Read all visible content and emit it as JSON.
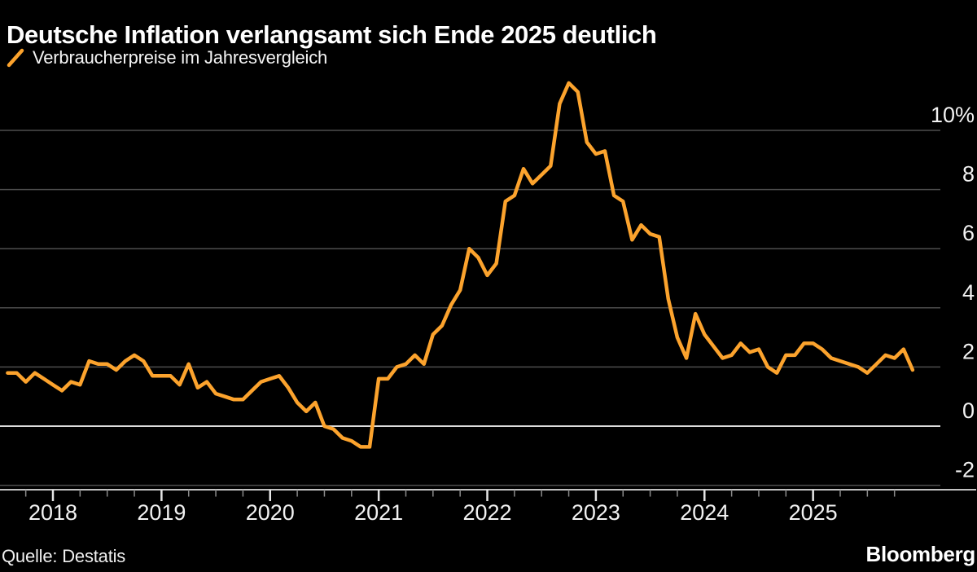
{
  "title": "Deutsche Inflation verlangsamt sich Ende 2025 deutlich",
  "legend": {
    "label": "Verbraucherpreise im Jahresvergleich"
  },
  "source": "Quelle: Destatis",
  "brand": "Bloomberg",
  "colors": {
    "background": "#000000",
    "line": "#FCA32D",
    "grid": "#4d4d4d",
    "zero_line": "#dcdcdc",
    "axis_line": "#c2c2c2",
    "year_tick": "#e5e5e5",
    "quarter_tick": "#8a8a8a",
    "text": "#f2f2f2"
  },
  "chart_data": {
    "type": "line",
    "title": "Deutsche Inflation verlangsamt sich Ende 2025 deutlich",
    "series_name": "Verbraucherpreise im Jahresvergleich",
    "unit": "%",
    "frequency": "monthly",
    "start_month": "2017-08",
    "end_month": "2025-12",
    "values": [
      1.8,
      1.8,
      1.5,
      1.8,
      1.6,
      1.4,
      1.2,
      1.5,
      1.4,
      2.2,
      2.1,
      2.1,
      1.9,
      2.2,
      2.4,
      2.2,
      1.7,
      1.7,
      1.7,
      1.4,
      2.1,
      1.3,
      1.5,
      1.1,
      1.0,
      0.9,
      0.9,
      1.2,
      1.5,
      1.6,
      1.7,
      1.3,
      0.8,
      0.5,
      0.8,
      0.0,
      -0.1,
      -0.4,
      -0.5,
      -0.7,
      -0.7,
      1.6,
      1.6,
      2.0,
      2.1,
      2.4,
      2.1,
      3.1,
      3.4,
      4.1,
      4.6,
      6.0,
      5.7,
      5.1,
      5.5,
      7.6,
      7.8,
      8.7,
      8.2,
      8.5,
      8.8,
      10.9,
      11.6,
      11.3,
      9.6,
      9.2,
      9.3,
      7.8,
      7.6,
      6.3,
      6.8,
      6.5,
      6.4,
      4.3,
      3.0,
      2.3,
      3.8,
      3.1,
      2.7,
      2.3,
      2.4,
      2.8,
      2.5,
      2.6,
      2.0,
      1.8,
      2.4,
      2.4,
      2.8,
      2.8,
      2.6,
      2.3,
      2.2,
      2.1,
      2.0,
      1.8,
      2.1,
      2.4,
      2.3,
      2.6,
      1.9
    ],
    "x_ticks": [
      "2018",
      "2019",
      "2020",
      "2021",
      "2022",
      "2023",
      "2024",
      "2025"
    ],
    "y_tick_labels": [
      "10%",
      "8",
      "6",
      "4",
      "2",
      "0",
      "-2"
    ],
    "y_tick_values": [
      10,
      8,
      6,
      4,
      2,
      0,
      -2
    ],
    "ylim": [
      -2.4,
      11.9
    ],
    "grid": true,
    "legend_position": "top-left"
  }
}
